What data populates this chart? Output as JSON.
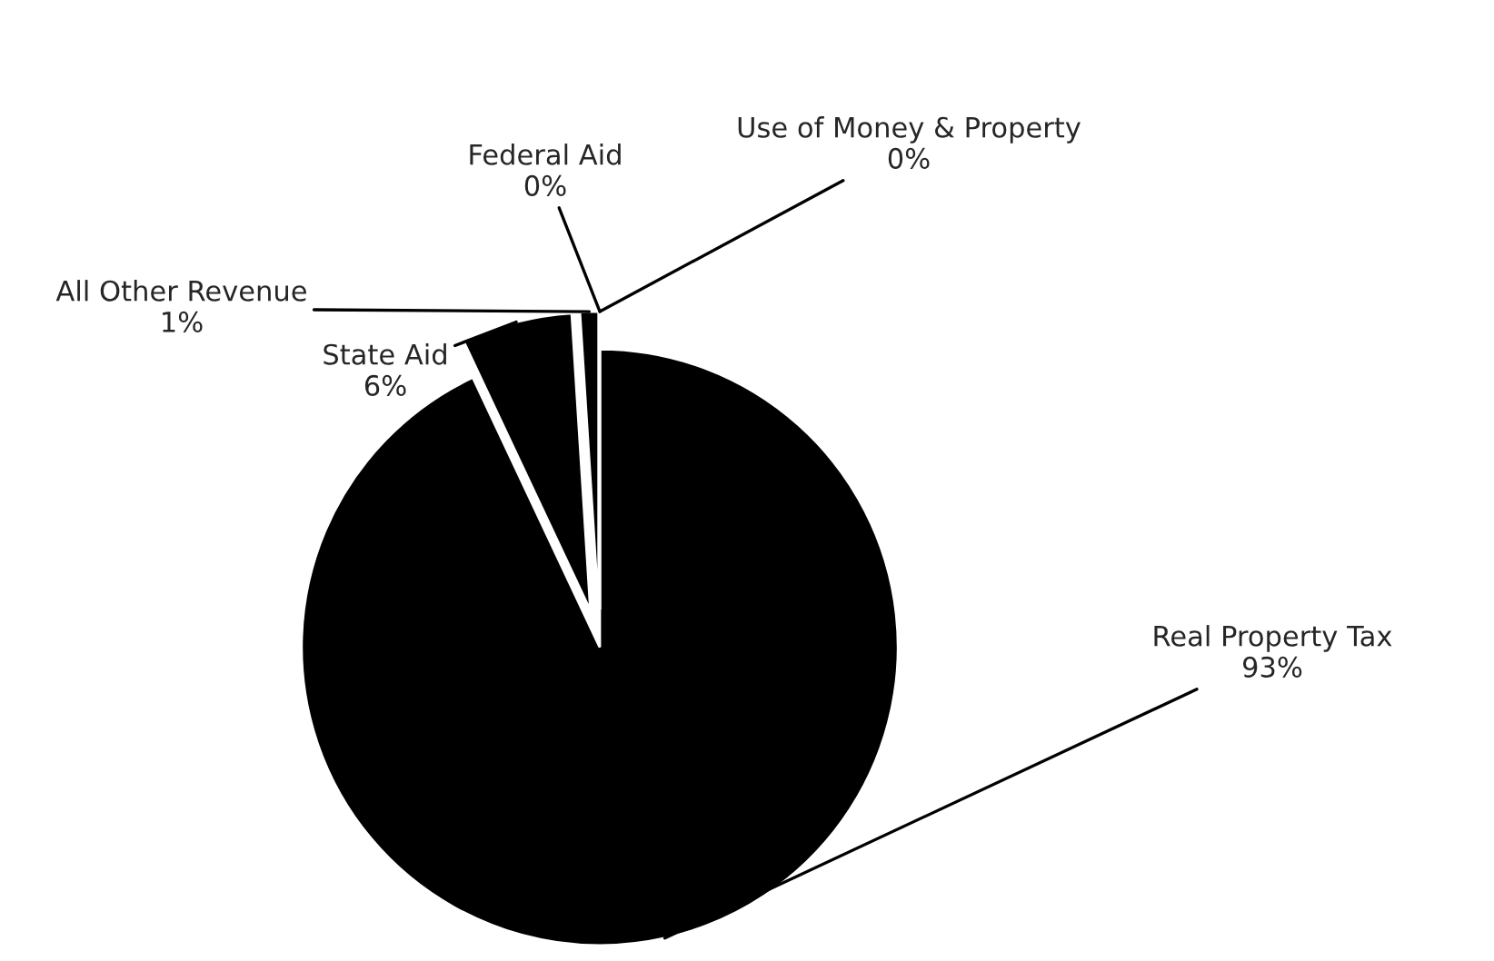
{
  "chart_data": {
    "type": "pie",
    "categories": [
      "Real Property Tax",
      "State Aid",
      "All Other Revenue",
      "Federal Aid",
      "Use of Money & Property"
    ],
    "values": [
      93,
      6,
      1,
      0,
      0
    ],
    "colors": [
      "#000000",
      "#000000",
      "#000000",
      "#404040",
      "#404040"
    ],
    "value_labels": [
      "93%",
      "6%",
      "1%",
      "0%",
      "0%"
    ]
  }
}
